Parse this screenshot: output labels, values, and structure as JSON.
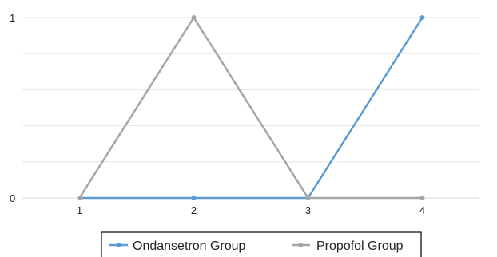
{
  "chart_data": {
    "type": "line",
    "title": "",
    "xlabel": "",
    "ylabel": "",
    "x": [
      1,
      2,
      3,
      4
    ],
    "x_tick_labels": [
      "1",
      "2",
      "3",
      "4"
    ],
    "y_tick_labels": [
      "0",
      "1"
    ],
    "ylim": [
      0,
      1
    ],
    "grid": true,
    "legend": "bottom",
    "series": [
      {
        "name": "Ondansetron Group",
        "values": [
          0,
          0,
          0,
          1
        ],
        "color": "#5b9bd5"
      },
      {
        "name": "Propofol Group",
        "values": [
          0,
          1,
          0,
          0
        ],
        "color": "#a5a5a5"
      }
    ]
  }
}
